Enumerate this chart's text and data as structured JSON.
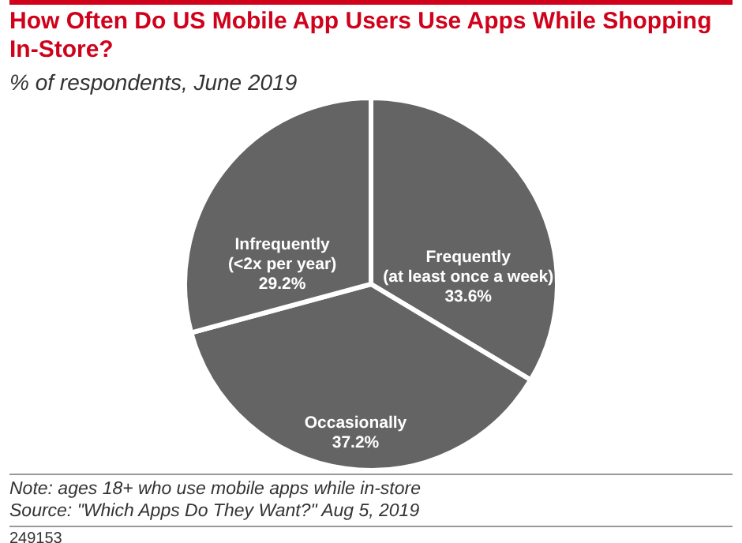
{
  "chart_data": {
    "type": "pie",
    "title": "How Often Do US Mobile App Users Use Apps While Shopping In-Store?",
    "subtitle": "% of respondents, June 2019",
    "categories": [
      "Frequently\n(at least once a week)",
      "Occasionally",
      "Infrequently\n(<2x per year)"
    ],
    "values": [
      33.6,
      37.2,
      29.2
    ],
    "colors": [
      "#646464",
      "#646464",
      "#646464"
    ],
    "value_labels": [
      "33.6%",
      "37.2%",
      "29.2%"
    ],
    "annotations": [
      "Note: ages 18+ who use mobile apps while in-store",
      "Source: \"Which Apps Do They Want?\" Aug 5, 2019",
      "249153"
    ]
  }
}
